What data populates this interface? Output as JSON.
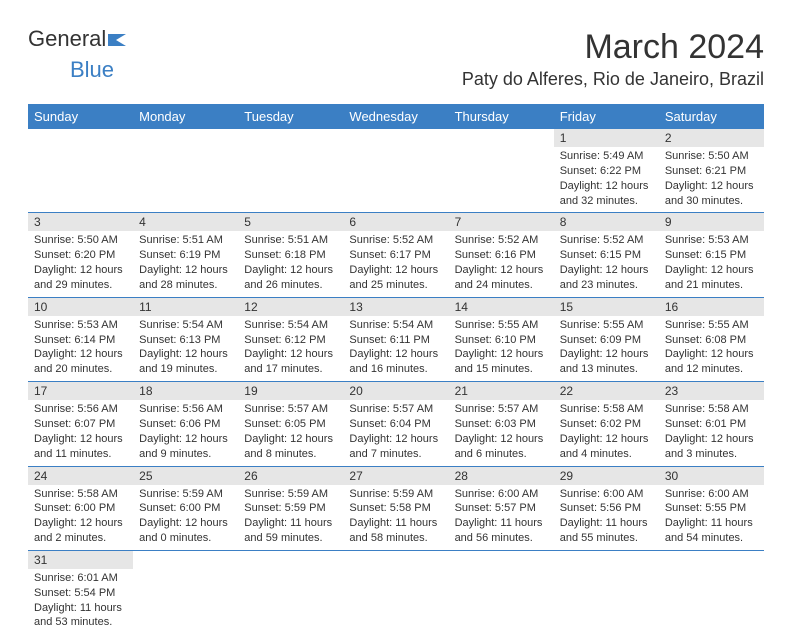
{
  "logo": {
    "text1": "General",
    "text2": "Blue"
  },
  "title": "March 2024",
  "location": "Paty do Alferes, Rio de Janeiro, Brazil",
  "columns": [
    "Sunday",
    "Monday",
    "Tuesday",
    "Wednesday",
    "Thursday",
    "Friday",
    "Saturday"
  ],
  "colors": {
    "header_bg": "#3b7fc4",
    "header_fg": "#ffffff",
    "daynum_bg": "#e6e6e6",
    "divider": "#3b7fc4",
    "text": "#333333"
  },
  "weeks": [
    [
      null,
      null,
      null,
      null,
      null,
      {
        "n": "1",
        "sr": "5:49 AM",
        "ss": "6:22 PM",
        "dl": "12 hours and 32 minutes."
      },
      {
        "n": "2",
        "sr": "5:50 AM",
        "ss": "6:21 PM",
        "dl": "12 hours and 30 minutes."
      }
    ],
    [
      {
        "n": "3",
        "sr": "5:50 AM",
        "ss": "6:20 PM",
        "dl": "12 hours and 29 minutes."
      },
      {
        "n": "4",
        "sr": "5:51 AM",
        "ss": "6:19 PM",
        "dl": "12 hours and 28 minutes."
      },
      {
        "n": "5",
        "sr": "5:51 AM",
        "ss": "6:18 PM",
        "dl": "12 hours and 26 minutes."
      },
      {
        "n": "6",
        "sr": "5:52 AM",
        "ss": "6:17 PM",
        "dl": "12 hours and 25 minutes."
      },
      {
        "n": "7",
        "sr": "5:52 AM",
        "ss": "6:16 PM",
        "dl": "12 hours and 24 minutes."
      },
      {
        "n": "8",
        "sr": "5:52 AM",
        "ss": "6:15 PM",
        "dl": "12 hours and 23 minutes."
      },
      {
        "n": "9",
        "sr": "5:53 AM",
        "ss": "6:15 PM",
        "dl": "12 hours and 21 minutes."
      }
    ],
    [
      {
        "n": "10",
        "sr": "5:53 AM",
        "ss": "6:14 PM",
        "dl": "12 hours and 20 minutes."
      },
      {
        "n": "11",
        "sr": "5:54 AM",
        "ss": "6:13 PM",
        "dl": "12 hours and 19 minutes."
      },
      {
        "n": "12",
        "sr": "5:54 AM",
        "ss": "6:12 PM",
        "dl": "12 hours and 17 minutes."
      },
      {
        "n": "13",
        "sr": "5:54 AM",
        "ss": "6:11 PM",
        "dl": "12 hours and 16 minutes."
      },
      {
        "n": "14",
        "sr": "5:55 AM",
        "ss": "6:10 PM",
        "dl": "12 hours and 15 minutes."
      },
      {
        "n": "15",
        "sr": "5:55 AM",
        "ss": "6:09 PM",
        "dl": "12 hours and 13 minutes."
      },
      {
        "n": "16",
        "sr": "5:55 AM",
        "ss": "6:08 PM",
        "dl": "12 hours and 12 minutes."
      }
    ],
    [
      {
        "n": "17",
        "sr": "5:56 AM",
        "ss": "6:07 PM",
        "dl": "12 hours and 11 minutes."
      },
      {
        "n": "18",
        "sr": "5:56 AM",
        "ss": "6:06 PM",
        "dl": "12 hours and 9 minutes."
      },
      {
        "n": "19",
        "sr": "5:57 AM",
        "ss": "6:05 PM",
        "dl": "12 hours and 8 minutes."
      },
      {
        "n": "20",
        "sr": "5:57 AM",
        "ss": "6:04 PM",
        "dl": "12 hours and 7 minutes."
      },
      {
        "n": "21",
        "sr": "5:57 AM",
        "ss": "6:03 PM",
        "dl": "12 hours and 6 minutes."
      },
      {
        "n": "22",
        "sr": "5:58 AM",
        "ss": "6:02 PM",
        "dl": "12 hours and 4 minutes."
      },
      {
        "n": "23",
        "sr": "5:58 AM",
        "ss": "6:01 PM",
        "dl": "12 hours and 3 minutes."
      }
    ],
    [
      {
        "n": "24",
        "sr": "5:58 AM",
        "ss": "6:00 PM",
        "dl": "12 hours and 2 minutes."
      },
      {
        "n": "25",
        "sr": "5:59 AM",
        "ss": "6:00 PM",
        "dl": "12 hours and 0 minutes."
      },
      {
        "n": "26",
        "sr": "5:59 AM",
        "ss": "5:59 PM",
        "dl": "11 hours and 59 minutes."
      },
      {
        "n": "27",
        "sr": "5:59 AM",
        "ss": "5:58 PM",
        "dl": "11 hours and 58 minutes."
      },
      {
        "n": "28",
        "sr": "6:00 AM",
        "ss": "5:57 PM",
        "dl": "11 hours and 56 minutes."
      },
      {
        "n": "29",
        "sr": "6:00 AM",
        "ss": "5:56 PM",
        "dl": "11 hours and 55 minutes."
      },
      {
        "n": "30",
        "sr": "6:00 AM",
        "ss": "5:55 PM",
        "dl": "11 hours and 54 minutes."
      }
    ],
    [
      {
        "n": "31",
        "sr": "6:01 AM",
        "ss": "5:54 PM",
        "dl": "11 hours and 53 minutes."
      },
      null,
      null,
      null,
      null,
      null,
      null
    ]
  ],
  "labels": {
    "sunrise": "Sunrise:",
    "sunset": "Sunset:",
    "daylight": "Daylight:"
  }
}
